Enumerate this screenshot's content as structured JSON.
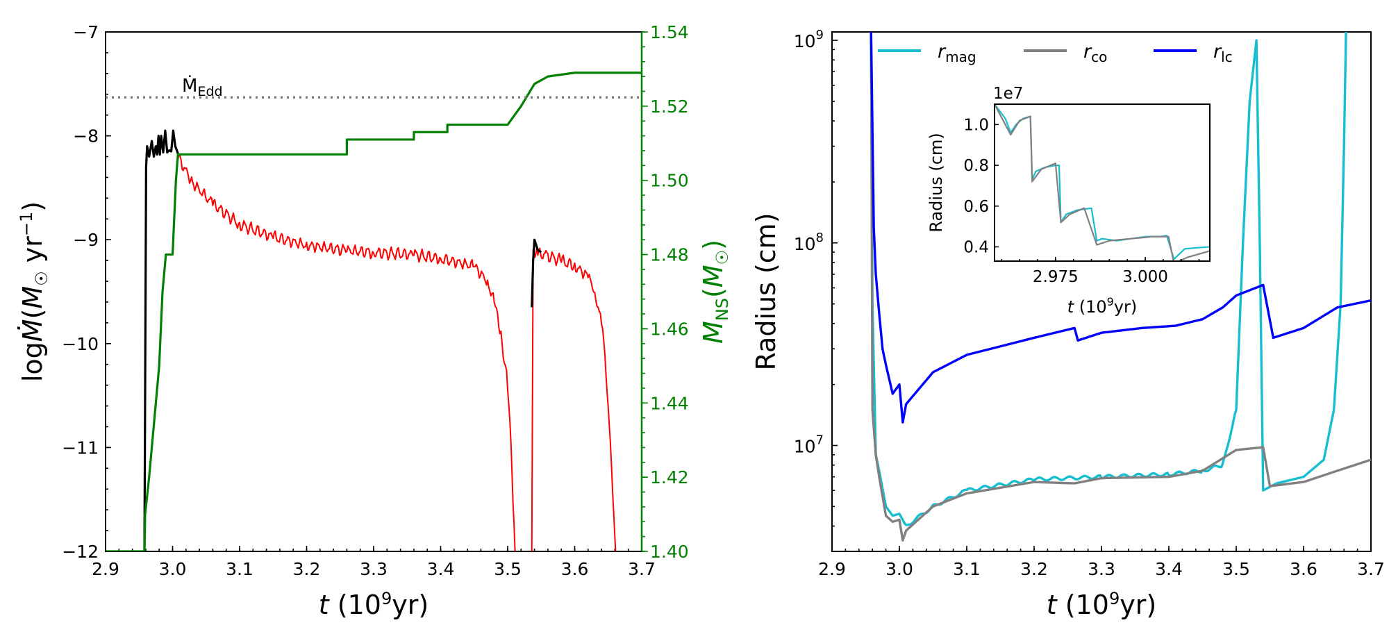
{
  "chart_data": [
    {
      "type": "line",
      "panel": "left",
      "xlabel": "t (10^9 yr)",
      "ylabel": "log Ṁ (M⊙ yr⁻¹)",
      "ylabel_right": "M_NS (M⊙)",
      "xlim": [
        2.9,
        3.7
      ],
      "ylim": [
        -12,
        -7
      ],
      "ylim_right": [
        1.4,
        1.54
      ],
      "xticks": [
        "2.9",
        "3.0",
        "3.1",
        "3.2",
        "3.3",
        "3.4",
        "3.5",
        "3.6",
        "3.7"
      ],
      "yticks": [
        "−12",
        "−11",
        "−10",
        "−9",
        "−8",
        "−7"
      ],
      "yticks_right": [
        "1.40",
        "1.42",
        "1.44",
        "1.46",
        "1.48",
        "1.50",
        "1.52",
        "1.54"
      ],
      "annotation": {
        "text": "Ṁ",
        "subscript": "Edd",
        "value": -7.63
      },
      "series": [
        {
          "name": "Mdot (black)",
          "color": "#000000",
          "x": [
            2.958,
            2.9605,
            2.962,
            2.965,
            2.969,
            2.972,
            2.975,
            2.977,
            2.979,
            2.981,
            2.983,
            2.986,
            2.989,
            2.992,
            2.995,
            2.998,
            3.001,
            3.004,
            3.008
          ],
          "y": [
            -12,
            -8.3,
            -8.1,
            -8.2,
            -8.05,
            -8.2,
            -8.1,
            -8.18,
            -8.0,
            -8.18,
            -8.0,
            -8.16,
            -7.95,
            -8.16,
            -8.14,
            -8.15,
            -7.95,
            -8.1,
            -8.17
          ]
        },
        {
          "name": "Mdot (red)",
          "color": "#ff0000",
          "x": [
            3.008,
            3.03,
            3.06,
            3.1,
            3.15,
            3.2,
            3.26,
            3.3,
            3.36,
            3.4,
            3.45,
            3.47,
            3.48,
            3.49,
            3.5,
            3.505,
            3.508,
            3.511
          ],
          "y": [
            -8.2,
            -8.45,
            -8.65,
            -8.85,
            -8.97,
            -9.05,
            -9.1,
            -9.12,
            -9.14,
            -9.18,
            -9.25,
            -9.4,
            -9.6,
            -9.9,
            -10.4,
            -11.0,
            -11.5,
            -12.0
          ]
        },
        {
          "name": "Mdot (red, second)",
          "color": "#ff0000",
          "x": [
            3.536,
            3.538,
            3.545,
            3.56,
            3.58,
            3.6,
            3.62,
            3.63,
            3.64,
            3.645,
            3.65,
            3.655,
            3.658,
            3.661
          ],
          "y": [
            -12.0,
            -9.1,
            -9.13,
            -9.15,
            -9.2,
            -9.25,
            -9.35,
            -9.5,
            -9.8,
            -10.1,
            -10.6,
            -11.2,
            -11.6,
            -12.0
          ]
        },
        {
          "name": "Mdot (black, second)",
          "color": "#000000",
          "x": [
            3.536,
            3.538,
            3.54,
            3.545,
            3.55
          ],
          "y": [
            -9.65,
            -9.2,
            -9.0,
            -9.1,
            -9.12
          ]
        },
        {
          "name": "M_NS",
          "color": "#008000",
          "axis": "right",
          "x": [
            2.9,
            2.958,
            2.959,
            2.965,
            2.97,
            2.975,
            2.98,
            2.985,
            2.99,
            3.0,
            3.005,
            3.008,
            3.1,
            3.2,
            3.26,
            3.26,
            3.36,
            3.36,
            3.41,
            3.41,
            3.5,
            3.52,
            3.54,
            3.56,
            3.6,
            3.7
          ],
          "y": [
            1.4,
            1.4,
            1.41,
            1.42,
            1.43,
            1.44,
            1.45,
            1.47,
            1.48,
            1.48,
            1.5,
            1.507,
            1.507,
            1.507,
            1.507,
            1.511,
            1.511,
            1.513,
            1.513,
            1.515,
            1.515,
            1.52,
            1.526,
            1.528,
            1.529,
            1.529
          ]
        }
      ]
    },
    {
      "type": "line",
      "panel": "right",
      "xlabel": "t (10^9 yr)",
      "ylabel": "Radius (cm)",
      "yscale": "log",
      "xlim": [
        2.9,
        3.7
      ],
      "ylim": [
        3000000.0,
        1100000000.0
      ],
      "xticks": [
        "2.9",
        "3.0",
        "3.1",
        "3.2",
        "3.3",
        "3.4",
        "3.5",
        "3.6",
        "3.7"
      ],
      "yticks": [
        {
          "base": "10",
          "exp": "7"
        },
        {
          "base": "10",
          "exp": "8"
        },
        {
          "base": "10",
          "exp": "9"
        }
      ],
      "legend": [
        {
          "label": "r",
          "subscript": "mag",
          "color": "#17becf"
        },
        {
          "label": "r",
          "subscript": "co",
          "color": "#808080"
        },
        {
          "label": "r",
          "subscript": "lc",
          "color": "#0000ff"
        }
      ],
      "legend_position": "top",
      "series": [
        {
          "name": "r_mag",
          "color": "#17becf",
          "x": [
            2.958,
            2.96,
            2.965,
            2.97,
            2.98,
            2.99,
            3.0,
            3.01,
            3.05,
            3.1,
            3.2,
            3.3,
            3.4,
            3.45,
            3.48,
            3.5,
            3.51,
            3.52,
            3.53,
            3.535,
            3.54,
            3.56,
            3.6,
            3.63,
            3.645,
            3.655,
            3.66,
            3.663
          ],
          "y": [
            1100000000.0,
            50000000.0,
            9000000.0,
            7500000.0,
            5000000.0,
            4500000.0,
            4600000.0,
            4000000.0,
            5000000.0,
            6000000.0,
            6800000.0,
            7000000.0,
            7200000.0,
            7500000.0,
            8000000.0,
            15000000.0,
            100000000.0,
            500000000.0,
            1000000000.0,
            100000000.0,
            6000000.0,
            6500000.0,
            7000000.0,
            8500000.0,
            15000000.0,
            50000000.0,
            300000000.0,
            1100000000.0
          ]
        },
        {
          "name": "r_co",
          "color": "#808080",
          "x": [
            2.958,
            2.96,
            2.965,
            2.97,
            2.98,
            2.99,
            3.0,
            3.005,
            3.01,
            3.05,
            3.1,
            3.2,
            3.26,
            3.3,
            3.4,
            3.45,
            3.5,
            3.54,
            3.55,
            3.6,
            3.65,
            3.7
          ],
          "y": [
            1100000000.0,
            15000000.0,
            9000000.0,
            7000000.0,
            4500000.0,
            4200000.0,
            4300000.0,
            3400000.0,
            3800000.0,
            5000000.0,
            5800000.0,
            6600000.0,
            6500000.0,
            6900000.0,
            7000000.0,
            7500000.0,
            9500000.0,
            9800000.0,
            6300000.0,
            6600000.0,
            7500000.0,
            8500000.0
          ]
        },
        {
          "name": "r_lc",
          "color": "#0000ff",
          "x": [
            2.958,
            2.962,
            2.965,
            2.97,
            2.975,
            2.98,
            2.99,
            3.0,
            3.005,
            3.01,
            3.05,
            3.1,
            3.2,
            3.26,
            3.265,
            3.3,
            3.36,
            3.41,
            3.45,
            3.48,
            3.5,
            3.54,
            3.555,
            3.6,
            3.65,
            3.7
          ],
          "y": [
            1100000000.0,
            120000000.0,
            70000000.0,
            45000000.0,
            30000000.0,
            25000000.0,
            18000000.0,
            20000000.0,
            13000000.0,
            16000000.0,
            23000000.0,
            28000000.0,
            34000000.0,
            38000000.0,
            33000000.0,
            36000000.0,
            38000000.0,
            39000000.0,
            42000000.0,
            48000000.0,
            55000000.0,
            62000000.0,
            34000000.0,
            38000000.0,
            48000000.0,
            52000000.0
          ]
        }
      ],
      "inset": {
        "ylabel": "Radius (cm)",
        "xlabel": "t (10^9 yr)",
        "offset_text": "1e7",
        "xlim": [
          2.958,
          3.018
        ],
        "ylim": [
          0.33,
          1.1
        ],
        "xticks": [
          "2.975",
          "3.000"
        ],
        "yticks": [
          "0.4",
          "0.6",
          "0.8",
          "1.0"
        ],
        "series": [
          {
            "name": "r_mag inset",
            "color": "#17becf",
            "x": [
              2.958,
              2.961,
              2.9625,
              2.964,
              2.966,
              2.968,
              2.9685,
              2.9695,
              2.972,
              2.975,
              2.976,
              2.9765,
              2.978,
              2.981,
              2.985,
              2.9865,
              2.988,
              2.992,
              2.996,
              3.0,
              3.004,
              3.006,
              3.008,
              3.011,
              3.014,
              3.018
            ],
            "y": [
              1.1,
              1.03,
              0.96,
              1.0,
              1.03,
              1.04,
              0.73,
              0.77,
              0.79,
              0.8,
              0.8,
              0.52,
              0.56,
              0.58,
              0.59,
              0.43,
              0.44,
              0.43,
              0.44,
              0.45,
              0.45,
              0.455,
              0.34,
              0.39,
              0.395,
              0.4
            ]
          },
          {
            "name": "r_co inset",
            "color": "#808080",
            "x": [
              2.958,
              2.961,
              2.9625,
              2.965,
              2.968,
              2.9685,
              2.971,
              2.975,
              2.9765,
              2.979,
              2.983,
              2.9865,
              2.99,
              2.996,
              3.002,
              3.0065,
              3.008,
              3.012,
              3.018
            ],
            "y": [
              1.1,
              1.0,
              0.95,
              1.02,
              1.04,
              0.72,
              0.78,
              0.81,
              0.52,
              0.56,
              0.59,
              0.41,
              0.43,
              0.44,
              0.45,
              0.45,
              0.32,
              0.35,
              0.38
            ]
          }
        ]
      }
    }
  ]
}
